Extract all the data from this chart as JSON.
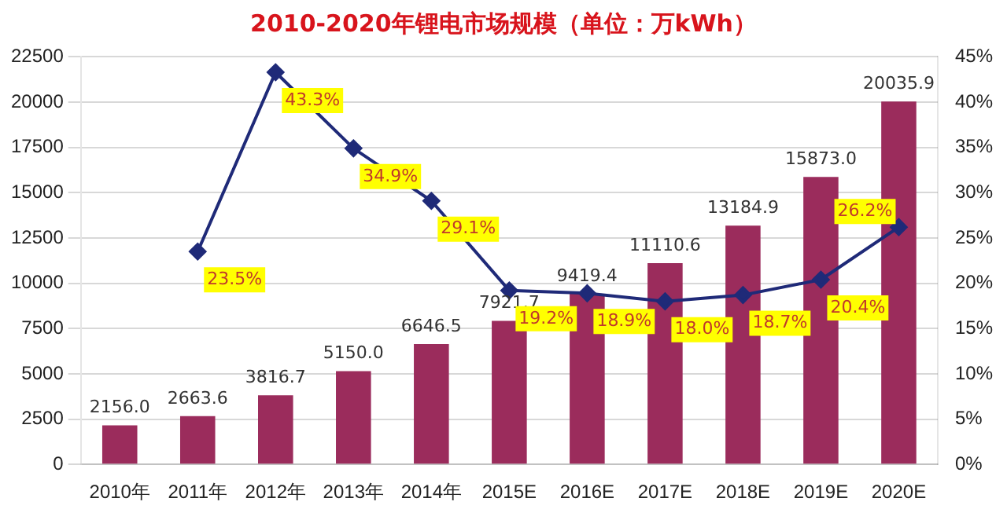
{
  "chart_data": {
    "type": "bar",
    "title": "2010-2020年锂电市场规模（单位：万kWh）",
    "categories": [
      "2010年",
      "2011年",
      "2012年",
      "2013年",
      "2014年",
      "2015E",
      "2016E",
      "2017E",
      "2018E",
      "2019E",
      "2020E"
    ],
    "series": [
      {
        "color": "#9b2c5c",
        "values": [
          2156.0,
          2663.6,
          3816.7,
          5150.0,
          6646.5,
          7921.7,
          9419.4,
          11110.6,
          13184.9,
          15873.0,
          20035.9
        ],
        "value_labels": [
          "2156.0",
          "2663.6",
          "3816.7",
          "5150.0",
          "6646.5",
          "7921.7",
          "9419.4",
          "11110.6",
          "13184.9",
          "15873.0",
          "20035.9"
        ]
      },
      {
        "type": "line",
        "axis": "y2",
        "color": "#1f2a78",
        "values": [
          null,
          23.5,
          43.3,
          34.9,
          29.1,
          19.2,
          18.9,
          18.0,
          18.7,
          20.4,
          26.2
        ],
        "value_labels": [
          null,
          "23.5%",
          "43.3%",
          "34.9%",
          "29.1%",
          "19.2%",
          "18.9%",
          "18.0%",
          "18.7%",
          "20.4%",
          "26.2%"
        ]
      }
    ],
    "ylim": [
      0,
      22500
    ],
    "yticks": [
      0,
      2500,
      5000,
      7500,
      10000,
      12500,
      15000,
      17500,
      20000,
      22500
    ],
    "y2lim": [
      0,
      45
    ],
    "y2ticks": [
      {
        "value": 0,
        "label": "0%"
      },
      {
        "value": 5,
        "label": "5%"
      },
      {
        "value": 10,
        "label": "10%"
      },
      {
        "value": 15,
        "label": "15%"
      },
      {
        "value": 20,
        "label": "20%"
      },
      {
        "value": 25,
        "label": "25%"
      },
      {
        "value": 30,
        "label": "30%"
      },
      {
        "value": 35,
        "label": "35%"
      },
      {
        "value": 40,
        "label": "40%"
      },
      {
        "value": 45,
        "label": "45%"
      }
    ],
    "grid": "y",
    "marker": "diamond"
  }
}
